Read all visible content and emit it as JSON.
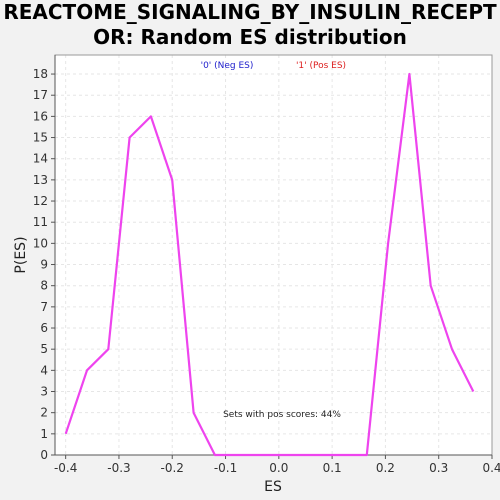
{
  "title_line1": "REACTOME_SIGNALING_BY_INSULIN_RECEPT",
  "title_line2": "OR: Random ES distribution",
  "legend": {
    "neg_label": "'0' (Neg ES)",
    "pos_label": "'1' (Pos ES)",
    "neg_color": "#2020cc",
    "pos_color": "#dd2020"
  },
  "annotation": "Sets with pos scores: 44%",
  "colors": {
    "line": "#ee44ee",
    "plot_bg": "#ffffff",
    "grid": "#e6e6e6",
    "page_bg": "#f2f2f2"
  },
  "chart_data": {
    "type": "line",
    "xlabel": "ES",
    "ylabel": "P(ES)",
    "xlim": [
      -0.42,
      0.4
    ],
    "ylim": [
      0,
      18.9
    ],
    "x_ticks": [
      -0.4,
      -0.3,
      -0.2,
      -0.1,
      0.0,
      0.1,
      0.2,
      0.3,
      0.4
    ],
    "x_tick_labels": [
      "-0.4",
      "-0.3",
      "-0.2",
      "-0.1",
      "0.0",
      "0.1",
      "0.2",
      "0.3",
      "0.4"
    ],
    "y_ticks": [
      0,
      1,
      2,
      3,
      4,
      5,
      6,
      7,
      8,
      9,
      10,
      11,
      12,
      13,
      14,
      15,
      16,
      17,
      18
    ],
    "grid": true,
    "series": [
      {
        "x": [
          -0.4,
          -0.36,
          -0.32,
          -0.28,
          -0.24,
          -0.2,
          -0.16,
          -0.12,
          -0.08,
          -0.04,
          0.0,
          0.04,
          0.08,
          0.12,
          0.165,
          0.205,
          0.245,
          0.285,
          0.325,
          0.365
        ],
        "y": [
          1,
          4,
          5,
          15,
          16,
          13,
          2,
          0,
          0,
          0,
          0,
          0,
          0,
          0,
          0,
          10,
          18,
          8,
          5,
          3
        ]
      }
    ]
  }
}
